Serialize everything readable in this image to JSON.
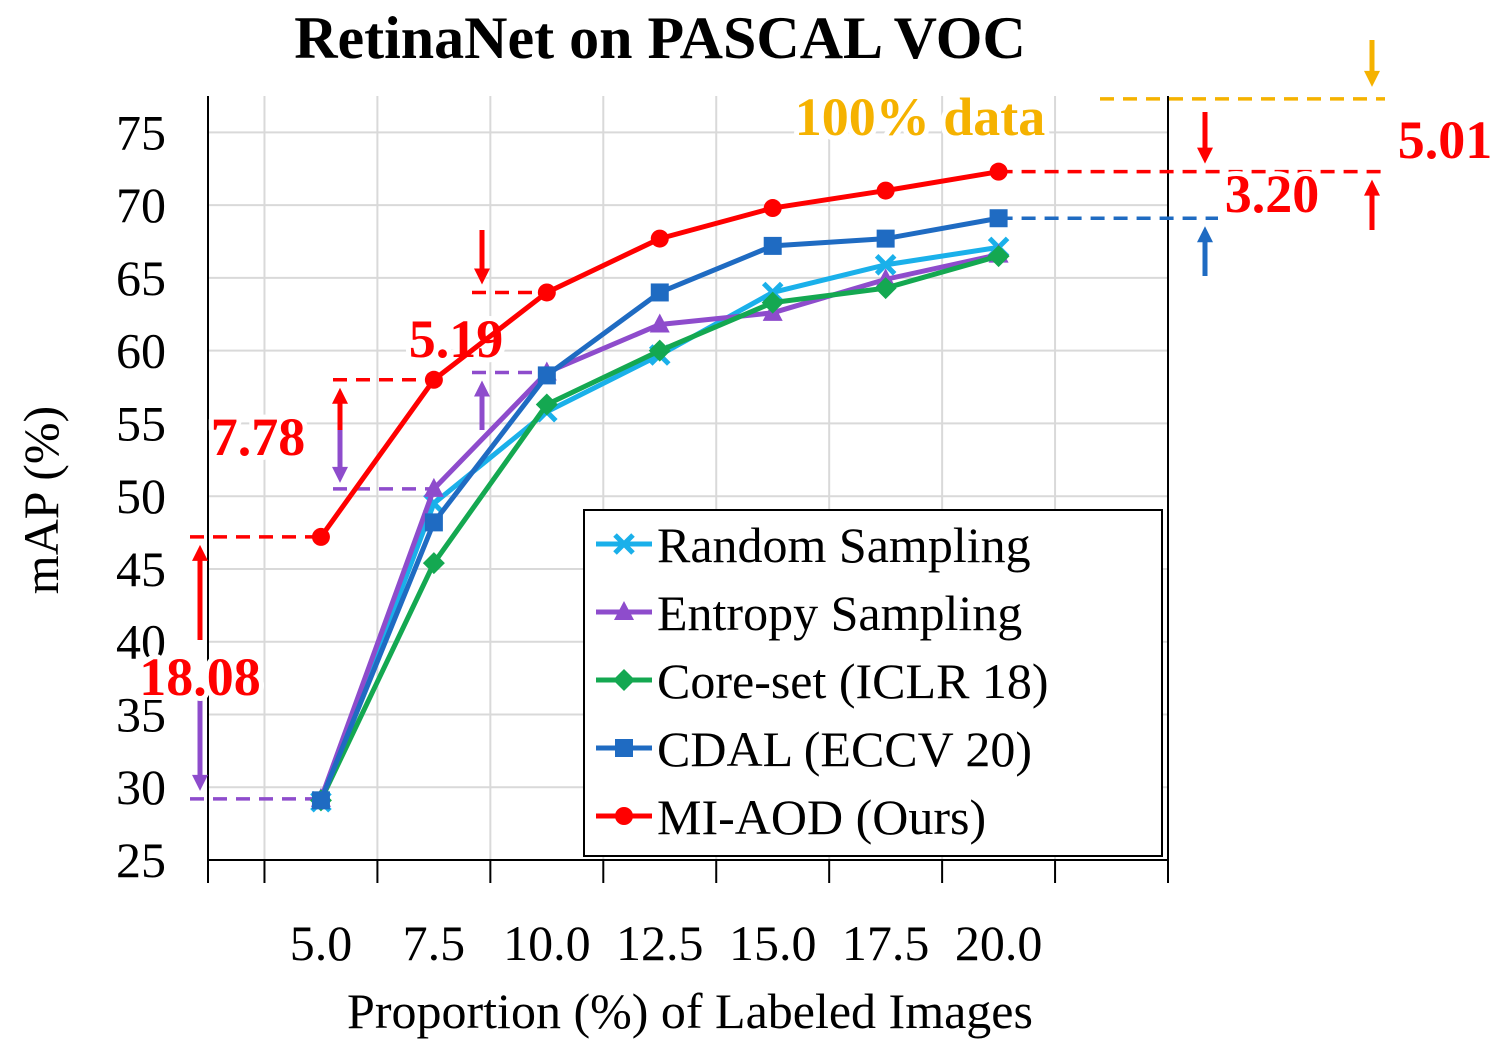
{
  "chart_data": {
    "type": "line",
    "title": "RetinaNet on PASCAL VOC",
    "xlabel": "Proportion (%) of Labeled Images",
    "ylabel": "mAP (%)",
    "x": [
      5.0,
      7.5,
      10.0,
      12.5,
      15.0,
      17.5,
      20.0
    ],
    "x_tick_labels": [
      "5.0",
      "7.5",
      "10.0",
      "12.5",
      "15.0",
      "17.5",
      "20.0"
    ],
    "ylim": [
      25,
      77.5
    ],
    "y_ticks": [
      25,
      30,
      35,
      40,
      45,
      50,
      55,
      60,
      65,
      70,
      75
    ],
    "grid": true,
    "legend_position": "bottom-right",
    "series": [
      {
        "name": "Random Sampling",
        "color": "#1ab0ea",
        "marker": "x",
        "values": [
          29.0,
          49.5,
          55.8,
          59.7,
          64.0,
          65.9,
          67.1
        ]
      },
      {
        "name": "Entropy Sampling",
        "color": "#8e4ccc",
        "marker": "triangle",
        "values": [
          29.2,
          50.5,
          58.5,
          61.8,
          62.6,
          64.9,
          66.6
        ]
      },
      {
        "name": "Core-set (ICLR 18)",
        "color": "#14a851",
        "marker": "diamond",
        "values": [
          29.1,
          45.4,
          56.3,
          60.0,
          63.3,
          64.3,
          66.5
        ]
      },
      {
        "name": "CDAL (ECCV 20)",
        "color": "#1f6bc2",
        "marker": "square",
        "values": [
          29.1,
          48.2,
          58.3,
          64.0,
          67.2,
          67.7,
          69.1
        ]
      },
      {
        "name": "MI-AOD (Ours)",
        "color": "#ff0000",
        "marker": "circle",
        "values": [
          47.2,
          58.0,
          64.0,
          67.7,
          69.8,
          71.0,
          72.3
        ]
      }
    ],
    "annotations": {
      "full_data": {
        "text": "100% data",
        "value": 77.3,
        "color": "#f5b200"
      },
      "gaps": [
        {
          "text": "18.08",
          "color": "#ff0000"
        },
        {
          "text": "7.78",
          "color": "#ff0000"
        },
        {
          "text": "5.19",
          "color": "#ff0000"
        },
        {
          "text": "3.20",
          "color": "#ff0000"
        },
        {
          "text": "5.01",
          "color": "#ff0000"
        }
      ]
    }
  }
}
